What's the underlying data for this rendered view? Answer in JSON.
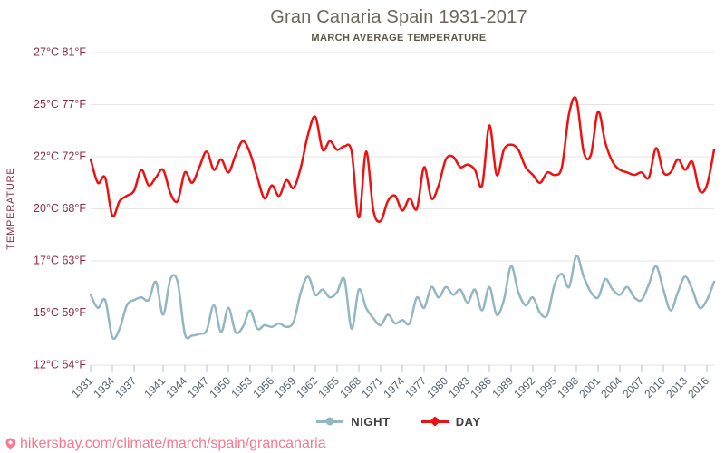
{
  "header": {
    "title": "Gran Canaria Spain 1931-2017",
    "subtitle": "MARCH AVERAGE TEMPERATURE"
  },
  "y_axis": {
    "title": "TEMPERATURE",
    "tick_labels": [
      "27°C 81°F",
      "25°C 77°F",
      "22°C 72°F",
      "20°C 68°F",
      "17°C 63°F",
      "15°C 59°F",
      "12°C 54°F"
    ],
    "tick_values_c": [
      27,
      25,
      22,
      20,
      17,
      15,
      12
    ]
  },
  "x_axis": {
    "tick_years": [
      1931,
      1934,
      1937,
      1941,
      1944,
      1947,
      1950,
      1953,
      1956,
      1959,
      1962,
      1965,
      1968,
      1971,
      1974,
      1977,
      1980,
      1983,
      1986,
      1989,
      1992,
      1995,
      1998,
      2001,
      2004,
      2007,
      2010,
      2013,
      2016
    ]
  },
  "legend": {
    "items": [
      {
        "id": "night",
        "label": "NIGHT",
        "marker": "circle"
      },
      {
        "id": "day",
        "label": "DAY",
        "marker": "diamond"
      }
    ]
  },
  "footer": {
    "url": "hikersbay.com/climate/march/spain/grancanaria",
    "icon": "map-pin-icon"
  },
  "colors": {
    "day": "#ee1111",
    "night": "#93b6c3",
    "grid": "#e4e4e4",
    "y_label": "#8c2d46",
    "x_label": "#515f6b",
    "tick_mark": "#afc3d6",
    "title": "#6f665b",
    "subtitle": "#5d564a",
    "legend_text": "#3f3f3f",
    "footer": "#f8798e"
  },
  "chart_data": {
    "type": "line",
    "title": "Gran Canaria Spain 1931-2017",
    "subtitle": "MARCH AVERAGE TEMPERATURE",
    "ylabel": "TEMPERATURE",
    "unit": "°C",
    "ylim": [
      12,
      27
    ],
    "grid": true,
    "legend_position": "bottom",
    "x_start": 1931,
    "x_end": 2017,
    "x": [
      1931,
      1932,
      1933,
      1934,
      1935,
      1936,
      1937,
      1938,
      1939,
      1940,
      1941,
      1942,
      1943,
      1944,
      1945,
      1946,
      1947,
      1948,
      1949,
      1950,
      1951,
      1952,
      1953,
      1954,
      1955,
      1956,
      1957,
      1958,
      1959,
      1960,
      1961,
      1962,
      1963,
      1964,
      1965,
      1966,
      1967,
      1968,
      1969,
      1970,
      1971,
      1972,
      1973,
      1974,
      1975,
      1976,
      1977,
      1978,
      1979,
      1980,
      1981,
      1982,
      1983,
      1984,
      1985,
      1986,
      1987,
      1988,
      1989,
      1990,
      1991,
      1992,
      1993,
      1994,
      1995,
      1996,
      1997,
      1998,
      1999,
      2000,
      2001,
      2002,
      2003,
      2004,
      2005,
      2006,
      2007,
      2008,
      2009,
      2010,
      2011,
      2012,
      2013,
      2014,
      2015,
      2016,
      2017
    ],
    "series": [
      {
        "name": "NIGHT",
        "color": "#93b6c3",
        "values": [
          15.7,
          15.2,
          15.5,
          13.6,
          14.1,
          15.3,
          15.5,
          15.6,
          15.5,
          16.2,
          14.9,
          16.3,
          16.2,
          13.8,
          13.7,
          13.8,
          14.0,
          15.3,
          13.9,
          15.2,
          13.9,
          14.2,
          15.1,
          14.1,
          14.3,
          14.2,
          14.4,
          14.2,
          14.5,
          15.8,
          16.4,
          15.7,
          15.9,
          15.6,
          15.8,
          16.3,
          14.1,
          15.9,
          15.2,
          14.7,
          14.3,
          14.9,
          14.4,
          14.6,
          14.4,
          15.6,
          15.2,
          16.0,
          15.6,
          16.0,
          15.7,
          15.9,
          15.4,
          15.9,
          15.1,
          16.0,
          14.9,
          15.5,
          16.8,
          15.8,
          15.3,
          15.6,
          15.0,
          14.9,
          16.1,
          16.5,
          16.0,
          17.3,
          16.4,
          15.8,
          15.6,
          16.3,
          15.9,
          15.7,
          16.0,
          15.6,
          15.5,
          16.1,
          16.8,
          15.9,
          15.1,
          15.8,
          16.4,
          15.9,
          15.2,
          15.5,
          16.2
        ]
      },
      {
        "name": "DAY",
        "color": "#ee1111",
        "values": [
          21.9,
          21.0,
          21.2,
          19.6,
          20.3,
          20.5,
          20.7,
          21.5,
          20.9,
          21.2,
          21.5,
          20.6,
          20.3,
          21.4,
          21.0,
          21.6,
          22.3,
          21.5,
          21.9,
          21.4,
          22.1,
          22.9,
          22.2,
          21.2,
          20.4,
          20.9,
          20.5,
          21.1,
          20.8,
          21.6,
          23.3,
          24.3,
          22.4,
          22.9,
          22.4,
          22.6,
          22.3,
          19.5,
          22.3,
          19.9,
          19.3,
          20.3,
          20.5,
          19.9,
          20.4,
          20.0,
          21.6,
          20.4,
          20.9,
          21.9,
          22.0,
          21.6,
          21.7,
          21.5,
          20.9,
          23.8,
          21.3,
          22.4,
          22.7,
          22.4,
          21.6,
          21.3,
          21.0,
          21.4,
          21.3,
          21.6,
          24.5,
          25.2,
          22.3,
          22.1,
          24.6,
          22.8,
          21.8,
          21.5,
          21.4,
          21.3,
          21.4,
          21.2,
          22.5,
          21.4,
          21.4,
          21.9,
          21.5,
          21.8,
          20.7,
          20.9,
          22.4
        ]
      }
    ]
  }
}
